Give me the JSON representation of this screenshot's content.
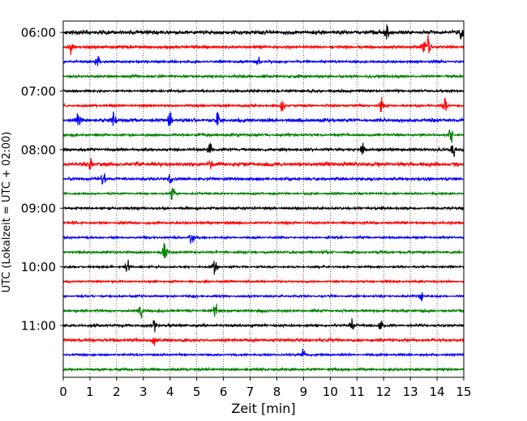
{
  "chart_data": {
    "type": "line",
    "title": "",
    "xlabel": "Zeit  [min]",
    "ylabel": "UTC (Lokalzeit = UTC + 02:00)",
    "xlim": [
      0,
      15
    ],
    "x_ticks": [
      "0",
      "1",
      "2",
      "3",
      "4",
      "5",
      "6",
      "7",
      "8",
      "9",
      "10",
      "11",
      "12",
      "13",
      "14",
      "15"
    ],
    "y_tick_labels": [
      "06:00",
      "07:00",
      "08:00",
      "09:00",
      "10:00",
      "11:00"
    ],
    "grid": {
      "vertical_minute_lines": true,
      "style": "dotted"
    },
    "trace_interval_minutes": 15,
    "trace_colors_cycle": [
      "#000000",
      "#ff0000",
      "#0000ff",
      "#008000"
    ],
    "series": [
      {
        "start": "06:00",
        "color": "#000000",
        "amplitude": 0.8,
        "events": [
          [
            12.1,
            0.9
          ],
          [
            14.9,
            0.9
          ]
        ]
      },
      {
        "start": "06:15",
        "color": "#ff0000",
        "amplitude": 0.6,
        "events": [
          [
            0.3,
            0.8
          ],
          [
            13.7,
            2.0
          ],
          [
            13.5,
            1.0
          ]
        ]
      },
      {
        "start": "06:30",
        "color": "#0000ff",
        "amplitude": 0.5,
        "events": [
          [
            1.3,
            0.9
          ],
          [
            7.3,
            0.5
          ]
        ]
      },
      {
        "start": "06:45",
        "color": "#008000",
        "amplitude": 0.5,
        "events": []
      },
      {
        "start": "07:00",
        "color": "#000000",
        "amplitude": 0.5,
        "events": []
      },
      {
        "start": "07:15",
        "color": "#ff0000",
        "amplitude": 0.5,
        "events": [
          [
            8.2,
            0.9
          ],
          [
            11.9,
            0.9
          ],
          [
            14.3,
            1.0
          ]
        ]
      },
      {
        "start": "07:30",
        "color": "#0000ff",
        "amplitude": 0.7,
        "events": [
          [
            0.6,
            1.1
          ],
          [
            1.9,
            0.9
          ],
          [
            4.0,
            0.9
          ],
          [
            5.8,
            1.0
          ]
        ]
      },
      {
        "start": "07:45",
        "color": "#008000",
        "amplitude": 0.5,
        "events": [
          [
            14.5,
            1.1
          ]
        ]
      },
      {
        "start": "08:00",
        "color": "#000000",
        "amplitude": 0.6,
        "events": [
          [
            5.5,
            1.0
          ],
          [
            11.2,
            0.9
          ],
          [
            14.6,
            1.1
          ]
        ]
      },
      {
        "start": "08:15",
        "color": "#ff0000",
        "amplitude": 0.8,
        "events": [
          [
            1.0,
            1.0
          ],
          [
            5.5,
            0.6
          ]
        ]
      },
      {
        "start": "08:30",
        "color": "#0000ff",
        "amplitude": 0.6,
        "events": [
          [
            1.5,
            1.0
          ],
          [
            4.0,
            0.6
          ]
        ]
      },
      {
        "start": "08:45",
        "color": "#008000",
        "amplitude": 0.4,
        "events": [
          [
            4.1,
            0.8
          ]
        ]
      },
      {
        "start": "09:00",
        "color": "#000000",
        "amplitude": 0.5,
        "events": []
      },
      {
        "start": "09:15",
        "color": "#ff0000",
        "amplitude": 0.5,
        "events": []
      },
      {
        "start": "09:30",
        "color": "#0000ff",
        "amplitude": 0.4,
        "events": [
          [
            4.8,
            0.9
          ]
        ]
      },
      {
        "start": "09:45",
        "color": "#008000",
        "amplitude": 0.5,
        "events": [
          [
            3.8,
            1.0
          ]
        ]
      },
      {
        "start": "10:00",
        "color": "#000000",
        "amplitude": 0.4,
        "events": [
          [
            2.4,
            0.9
          ],
          [
            5.7,
            0.9
          ]
        ]
      },
      {
        "start": "10:15",
        "color": "#ff0000",
        "amplitude": 0.4,
        "events": []
      },
      {
        "start": "10:30",
        "color": "#0000ff",
        "amplitude": 0.4,
        "events": [
          [
            13.4,
            0.8
          ]
        ]
      },
      {
        "start": "10:45",
        "color": "#008000",
        "amplitude": 0.5,
        "events": [
          [
            2.9,
            0.8
          ],
          [
            5.7,
            0.7
          ]
        ]
      },
      {
        "start": "11:00",
        "color": "#000000",
        "amplitude": 0.5,
        "events": [
          [
            3.4,
            0.8
          ],
          [
            10.8,
            0.9
          ],
          [
            11.9,
            0.8
          ]
        ]
      },
      {
        "start": "11:15",
        "color": "#ff0000",
        "amplitude": 0.6,
        "events": [
          [
            3.4,
            0.8
          ]
        ]
      },
      {
        "start": "11:30",
        "color": "#0000ff",
        "amplitude": 0.4,
        "events": [
          [
            9.0,
            0.6
          ]
        ]
      },
      {
        "start": "11:45",
        "color": "#008000",
        "amplitude": 0.5,
        "events": []
      }
    ]
  }
}
